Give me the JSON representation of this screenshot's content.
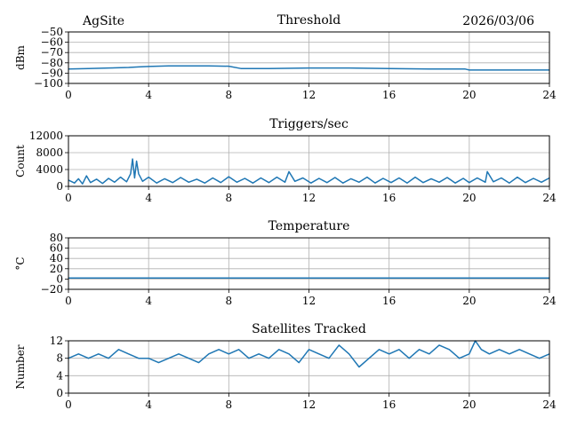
{
  "header": {
    "site": "AgSite",
    "date": "2026/03/06"
  },
  "colors": {
    "series": "#1f77b4",
    "grid": "#b0b0b0"
  },
  "chart_data": [
    {
      "type": "line",
      "title": "Threshold",
      "ylabel": "dBm",
      "xlabel": "",
      "xlim": [
        0,
        24
      ],
      "ylim": [
        -100,
        -50
      ],
      "xticks": [
        "0",
        "4",
        "8",
        "12",
        "16",
        "20",
        "24"
      ],
      "yticks": [
        "−100",
        "−90",
        "−80",
        "−70",
        "−60",
        "−50"
      ],
      "grid": true,
      "series": [
        {
          "x": [
            0,
            1,
            2,
            3,
            3.5,
            4,
            5,
            6,
            7,
            8,
            8.6,
            9,
            10,
            12,
            14,
            16,
            18,
            19.8,
            20,
            21,
            22,
            23,
            24
          ],
          "values": [
            -86,
            -85.5,
            -85,
            -84.5,
            -84,
            -83.5,
            -83,
            -83,
            -83,
            -83.3,
            -85.5,
            -85.5,
            -85.5,
            -85,
            -85,
            -85.5,
            -86,
            -86,
            -87,
            -87,
            -87,
            -87,
            -87
          ]
        }
      ]
    },
    {
      "type": "line",
      "title": "Triggers/sec",
      "ylabel": "Count",
      "xlabel": "",
      "xlim": [
        0,
        24
      ],
      "ylim": [
        0,
        12000
      ],
      "xticks": [
        "0",
        "4",
        "8",
        "12",
        "16",
        "20",
        "24"
      ],
      "yticks": [
        "0",
        "4000",
        "8000",
        "12000"
      ],
      "grid": true,
      "series": [
        {
          "x": [
            0,
            0.3,
            0.5,
            0.7,
            0.9,
            1.1,
            1.4,
            1.7,
            2.0,
            2.3,
            2.6,
            2.9,
            3.1,
            3.2,
            3.3,
            3.4,
            3.5,
            3.7,
            4.0,
            4.4,
            4.8,
            5.2,
            5.6,
            6.0,
            6.4,
            6.8,
            7.2,
            7.6,
            8.0,
            8.4,
            8.8,
            9.2,
            9.6,
            10.0,
            10.4,
            10.8,
            11.0,
            11.3,
            11.7,
            12.1,
            12.5,
            12.9,
            13.3,
            13.7,
            14.1,
            14.5,
            14.9,
            15.3,
            15.7,
            16.1,
            16.5,
            16.9,
            17.3,
            17.7,
            18.1,
            18.5,
            18.9,
            19.3,
            19.7,
            20.0,
            20.4,
            20.8,
            20.9,
            21.2,
            21.6,
            22.0,
            22.4,
            22.8,
            23.2,
            23.6,
            24.0
          ],
          "values": [
            1500,
            800,
            1800,
            600,
            2500,
            900,
            1700,
            700,
            1900,
            1000,
            2200,
            1100,
            3000,
            6500,
            2000,
            6000,
            3000,
            1200,
            2200,
            800,
            1800,
            900,
            2100,
            1000,
            1700,
            800,
            2000,
            900,
            2300,
            1000,
            1900,
            800,
            2000,
            900,
            2200,
            1000,
            3500,
            1200,
            2000,
            800,
            1900,
            900,
            2100,
            800,
            1800,
            1000,
            2200,
            800,
            1900,
            900,
            2000,
            800,
            2200,
            900,
            1800,
            1000,
            2100,
            800,
            1900,
            900,
            2000,
            1000,
            3500,
            1100,
            2000,
            800,
            2200,
            900,
            1900,
            1000,
            2000
          ]
        }
      ]
    },
    {
      "type": "line",
      "title": "Temperature",
      "ylabel": "°C",
      "xlabel": "",
      "xlim": [
        0,
        24
      ],
      "ylim": [
        -20,
        80
      ],
      "xticks": [
        "0",
        "4",
        "8",
        "12",
        "16",
        "20",
        "24"
      ],
      "yticks": [
        "−20",
        "0",
        "20",
        "40",
        "60",
        "80"
      ],
      "grid": true,
      "series": [
        {
          "x": [
            0,
            24
          ],
          "values": [
            2,
            2
          ]
        }
      ]
    },
    {
      "type": "line",
      "title": "Satellites Tracked",
      "ylabel": "Number",
      "xlabel": "",
      "xlim": [
        0,
        24
      ],
      "ylim": [
        0,
        12
      ],
      "xticks": [
        "0",
        "4",
        "8",
        "12",
        "16",
        "20",
        "24"
      ],
      "yticks": [
        "0",
        "4",
        "8",
        "12"
      ],
      "grid": true,
      "series": [
        {
          "x": [
            0,
            0.5,
            1.0,
            1.5,
            2.0,
            2.5,
            3.0,
            3.5,
            4.0,
            4.5,
            5.0,
            5.5,
            6.0,
            6.5,
            7.0,
            7.5,
            8.0,
            8.5,
            9.0,
            9.5,
            10.0,
            10.5,
            11.0,
            11.5,
            12.0,
            12.5,
            13.0,
            13.5,
            14.0,
            14.5,
            15.0,
            15.5,
            16.0,
            16.5,
            17.0,
            17.5,
            18.0,
            18.5,
            19.0,
            19.5,
            20.0,
            20.3,
            20.6,
            21.0,
            21.5,
            22.0,
            22.5,
            23.0,
            23.5,
            24.0
          ],
          "values": [
            8,
            9,
            8,
            9,
            8,
            10,
            9,
            8,
            8,
            7,
            8,
            9,
            8,
            7,
            9,
            10,
            9,
            10,
            8,
            9,
            8,
            10,
            9,
            7,
            10,
            9,
            8,
            11,
            9,
            6,
            8,
            10,
            9,
            10,
            8,
            10,
            9,
            11,
            10,
            8,
            9,
            12,
            10,
            9,
            10,
            9,
            10,
            9,
            8,
            9
          ]
        }
      ]
    }
  ]
}
